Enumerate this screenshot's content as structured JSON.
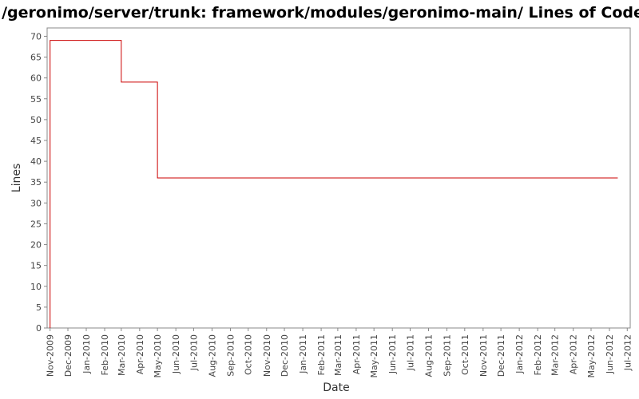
{
  "chart_data": {
    "type": "line",
    "line_style": "step",
    "title": "/geronimo/server/trunk: framework/modules/geronimo-main/ Lines of Code",
    "xlabel": "Date",
    "ylabel": "Lines",
    "ylim": [
      0,
      72
    ],
    "yticks": [
      0,
      5,
      10,
      15,
      20,
      25,
      30,
      35,
      40,
      45,
      50,
      55,
      60,
      65,
      70
    ],
    "xlim": [
      "2009-11-01",
      "2012-07-01"
    ],
    "xticks": [
      "Nov-2009",
      "Dec-2009",
      "Jan-2010",
      "Feb-2010",
      "Mar-2010",
      "Apr-2010",
      "May-2010",
      "Jun-2010",
      "Jul-2010",
      "Aug-2010",
      "Sep-2010",
      "Oct-2010",
      "Nov-2010",
      "Dec-2010",
      "Jan-2011",
      "Feb-2011",
      "Mar-2011",
      "Apr-2011",
      "May-2011",
      "Jun-2011",
      "Jul-2011",
      "Aug-2011",
      "Sep-2011",
      "Oct-2011",
      "Nov-2011",
      "Dec-2011",
      "Jan-2012",
      "Feb-2012",
      "Mar-2012",
      "Apr-2012",
      "May-2012",
      "Jun-2012",
      "Jul-2012"
    ],
    "grid": false,
    "legend": "none",
    "series": [
      {
        "color": "#cc0000",
        "x": [
          "2009-11-01",
          "2009-11-01",
          "2010-03-01",
          "2010-05-01",
          "2012-06-15"
        ],
        "y": [
          0,
          69,
          59,
          36,
          36
        ]
      }
    ]
  }
}
